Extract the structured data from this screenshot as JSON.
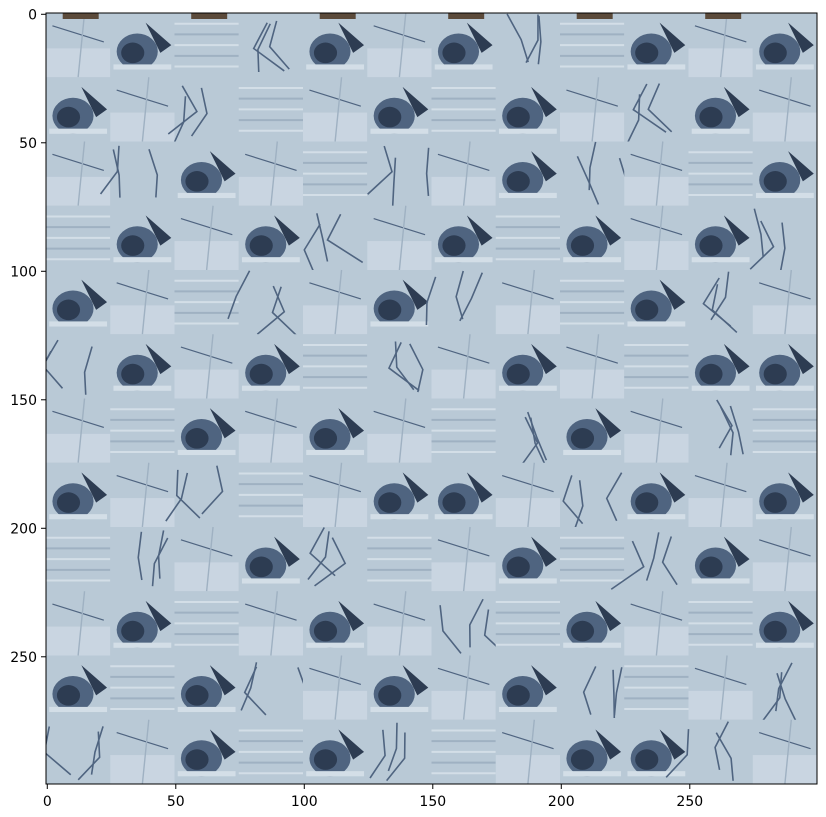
{
  "chart_data": {
    "type": "heatmap",
    "title": "",
    "xlabel": "",
    "ylabel": "",
    "xlim": [
      -0.5,
      299.5
    ],
    "ylim": [
      299.5,
      -0.5
    ],
    "x_ticks": [
      0,
      50,
      100,
      150,
      200,
      250
    ],
    "y_ticks": [
      0,
      50,
      100,
      150,
      200,
      250
    ],
    "x_tick_labels": [
      "0",
      "50",
      "100",
      "150",
      "200",
      "250"
    ],
    "y_tick_labels": [
      "0",
      "50",
      "100",
      "150",
      "200",
      "250"
    ],
    "tile_grid": {
      "columns": 12,
      "rows": 12,
      "tile_size_data": 25
    },
    "tile_types": [
      "snowy-ground",
      "dark-branch-cluster",
      "striped-ice",
      "branch-lines"
    ],
    "tile_layout": [
      [
        0,
        1,
        2,
        3,
        1,
        0,
        1,
        3,
        2,
        1,
        0,
        1
      ],
      [
        1,
        0,
        3,
        2,
        0,
        1,
        2,
        1,
        0,
        3,
        1,
        0
      ],
      [
        0,
        3,
        1,
        0,
        2,
        3,
        0,
        1,
        3,
        0,
        2,
        1
      ],
      [
        2,
        1,
        0,
        1,
        3,
        0,
        1,
        2,
        1,
        0,
        1,
        3
      ],
      [
        1,
        0,
        2,
        3,
        0,
        1,
        3,
        0,
        2,
        1,
        3,
        0
      ],
      [
        3,
        1,
        0,
        1,
        2,
        3,
        0,
        1,
        0,
        2,
        1,
        1
      ],
      [
        0,
        2,
        1,
        0,
        1,
        0,
        2,
        3,
        1,
        0,
        3,
        2
      ],
      [
        1,
        0,
        3,
        2,
        0,
        1,
        1,
        0,
        3,
        1,
        0,
        1
      ],
      [
        2,
        3,
        0,
        1,
        3,
        2,
        0,
        1,
        2,
        3,
        1,
        0
      ],
      [
        0,
        1,
        2,
        0,
        1,
        0,
        3,
        2,
        1,
        0,
        2,
        1
      ],
      [
        1,
        2,
        1,
        3,
        0,
        1,
        0,
        1,
        3,
        2,
        0,
        3
      ],
      [
        3,
        0,
        1,
        2,
        1,
        3,
        2,
        0,
        1,
        1,
        3,
        0
      ]
    ],
    "colors": {
      "ice": "#b9c9d6",
      "ice_light": "#d3dee7",
      "ice_shadow": "#9fb1c2",
      "dark": "#2d3c52",
      "mid": "#4f6480",
      "brown": "#5b4a3a",
      "axis": "#000000"
    }
  }
}
